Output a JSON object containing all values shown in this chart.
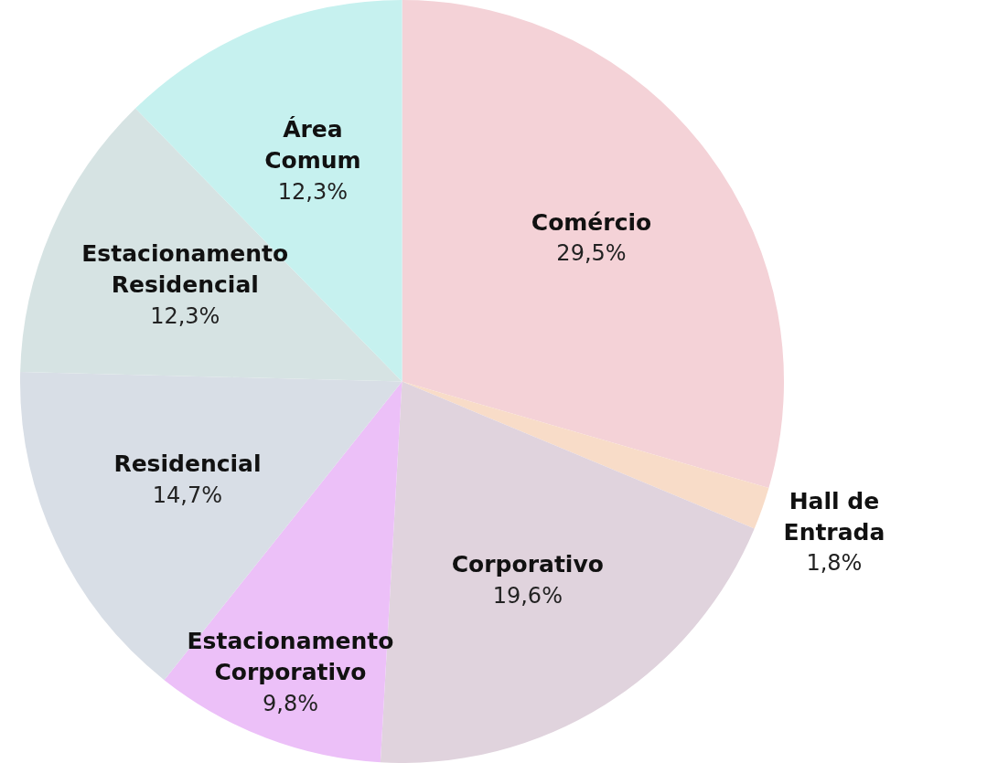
{
  "chart_data": {
    "type": "pie",
    "categories": [
      "Comércio",
      "Hall de\nEntrada",
      "Corporativo",
      "Estacionamento\nCorporativo",
      "Residencial",
      "Estacionamento\nResidencial",
      "Área\nComum"
    ],
    "values": [
      29.5,
      1.8,
      19.6,
      9.8,
      14.7,
      12.3,
      12.3
    ],
    "colors": [
      "#f4d2d7",
      "#f8dcc8",
      "#e0d3dd",
      "#ecc0f8",
      "#d8dee6",
      "#d6e3e3",
      "#c6f1ef"
    ],
    "value_labels": [
      "29,5%",
      "1,8%",
      "19,6%",
      "9,8%",
      "14,7%",
      "12,3%",
      "12,3%"
    ],
    "legend": false
  }
}
